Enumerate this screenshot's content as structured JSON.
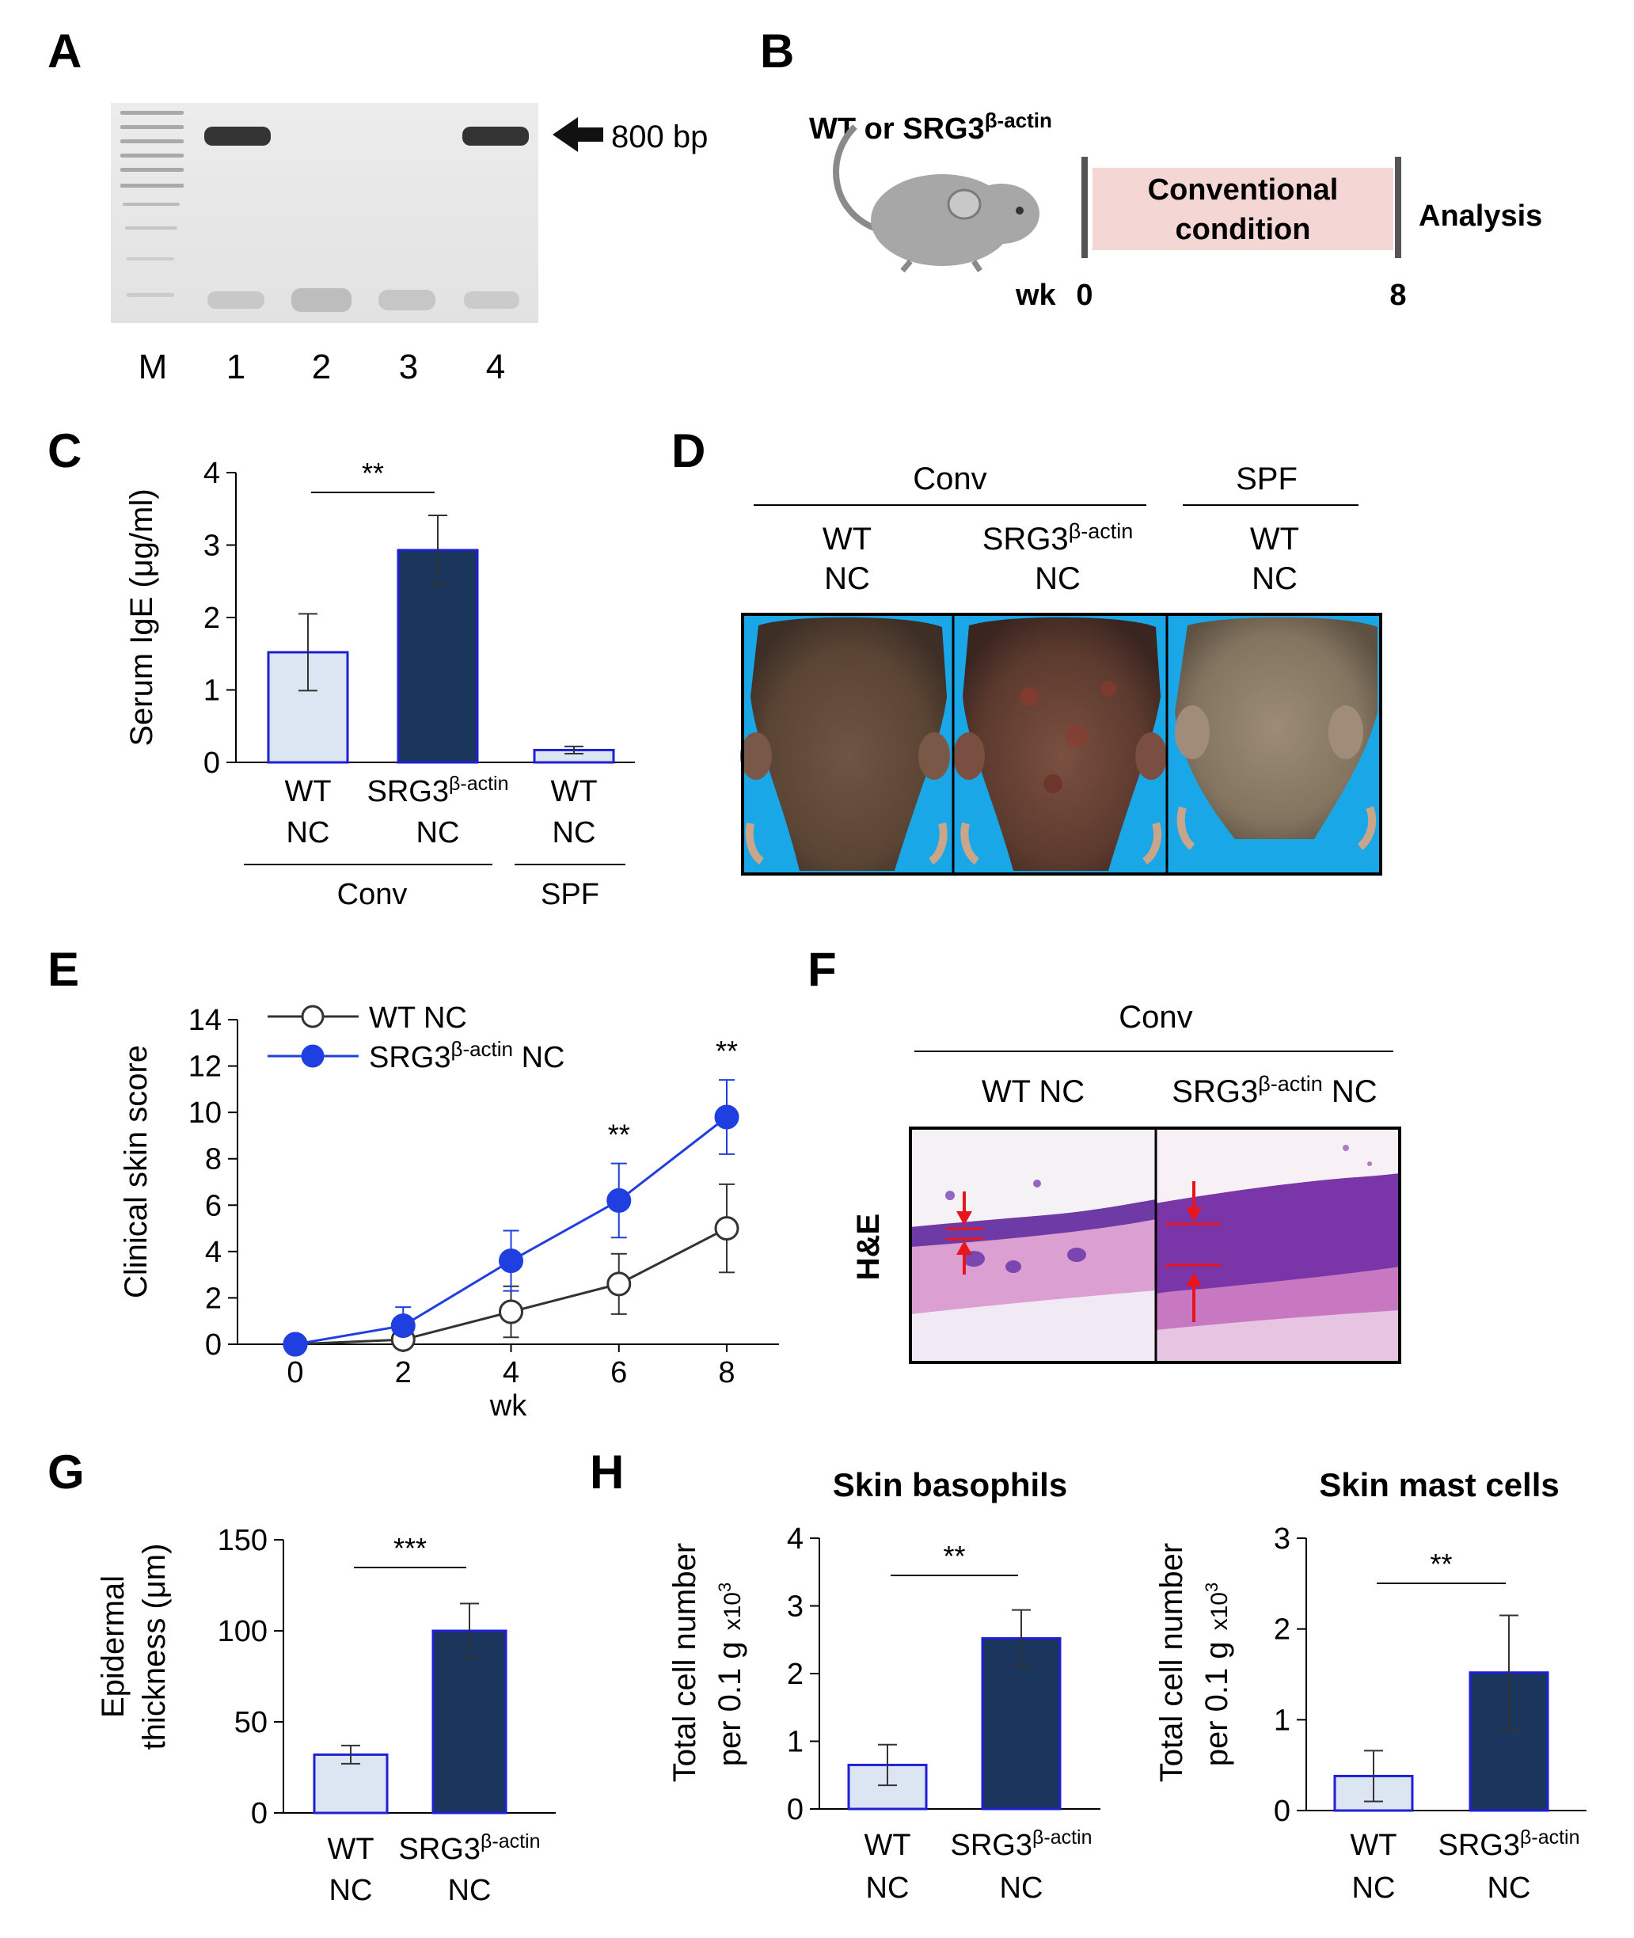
{
  "panels": {
    "A": {
      "label": "A",
      "marker": "800 bp",
      "lanes": [
        "M",
        "1",
        "2",
        "3",
        "4"
      ]
    },
    "B": {
      "label": "B",
      "mouse": "WT or SRG3",
      "mouse_sup": "β-actin",
      "box_line1": "Conventional",
      "box_line2": "condition",
      "analysis": "Analysis",
      "wk": "wk",
      "start": "0",
      "end": "8"
    },
    "C": {
      "label": "C",
      "ylabel": "Serum IgE (μg/ml)",
      "sig": "**",
      "group_conv": "Conv",
      "group_spf": "SPF"
    },
    "D": {
      "label": "D",
      "conv": "Conv",
      "spf": "SPF",
      "col1_top": "WT",
      "col1_bottom": "NC",
      "col2_top": "SRG3",
      "col2_sup": "β-actin",
      "col2_bottom": "NC",
      "col3_top": "WT",
      "col3_bottom": "NC"
    },
    "E": {
      "label": "E",
      "ylabel": "Clinical skin score",
      "xlabel": "wk"
    },
    "F": {
      "label": "F",
      "conv": "Conv",
      "col1": "WT NC",
      "col2_a": "SRG3",
      "col2_sup": "β-actin",
      "col2_b": " NC",
      "stain": "H&E"
    },
    "G": {
      "label": "G",
      "ylabel1": "Epidermal",
      "ylabel2": "thickness (μm)",
      "sig": "***"
    },
    "H": {
      "label": "H",
      "left_title": "Skin basophils",
      "right_title": "Skin mast cells",
      "ylabel1": "Total cell number",
      "ylabel2": "per 0.1 g",
      "multiplier": "x10",
      "multiplier_exp": "3",
      "sig": "**"
    }
  },
  "colors": {
    "wt_fill": "#dce6f2",
    "wt_edge": "#1f1fd6",
    "srg_fill": "#1b365d",
    "srg_line": "#1f3fe0",
    "box_fill": "#f4d7d4",
    "photo_bg": "#19a7e8",
    "he_pink": "#d88fc8",
    "arrow_red": "#e8161a"
  },
  "chart_data": [
    {
      "id": "C",
      "type": "bar",
      "ylabel": "Serum IgE (μg/ml)",
      "ylim": [
        0,
        4
      ],
      "yticks": [
        "0",
        "1",
        "2",
        "3",
        "4"
      ],
      "categories": [
        {
          "top": "WT",
          "sup": "",
          "bottom": "NC",
          "group": "Conv"
        },
        {
          "top": "SRG3",
          "sup": "β-actin",
          "bottom": "NC",
          "group": "Conv"
        },
        {
          "top": "WT",
          "sup": "",
          "bottom": "NC",
          "group": "SPF"
        }
      ],
      "values": [
        1.52,
        2.93,
        0.17
      ],
      "errors": [
        0.53,
        0.48,
        0.05
      ],
      "styles": [
        "wt",
        "srg",
        "wt"
      ],
      "significance": [
        {
          "pair": [
            0,
            1
          ],
          "label": "**"
        }
      ]
    },
    {
      "id": "E",
      "type": "line",
      "ylabel": "Clinical skin score",
      "xlabel": "wk",
      "ylim": [
        0,
        14
      ],
      "yticks": [
        "0",
        "2",
        "4",
        "6",
        "8",
        "10",
        "12",
        "14"
      ],
      "x": [
        0,
        2,
        4,
        6,
        8
      ],
      "xticks": [
        "0",
        "2",
        "4",
        "6",
        "8"
      ],
      "series": [
        {
          "name": "WT NC",
          "name_top": "WT NC",
          "sup": "",
          "style": "open",
          "values": [
            0,
            0.2,
            1.4,
            2.6,
            5.0
          ],
          "errors": [
            0,
            0.3,
            1.1,
            1.3,
            1.9
          ]
        },
        {
          "name": "SRG3 NC",
          "name_top": "SRG3",
          "sup": "β-actin",
          "name_end": " NC",
          "style": "filled",
          "values": [
            0,
            0.8,
            3.6,
            6.2,
            9.8
          ],
          "errors": [
            0,
            0.8,
            1.3,
            1.6,
            1.6
          ]
        }
      ],
      "significance": [
        {
          "x": 6,
          "label": "**"
        },
        {
          "x": 8,
          "label": "**"
        }
      ]
    },
    {
      "id": "G",
      "type": "bar",
      "ylabel": "Epidermal thickness (μm)",
      "ylim": [
        0,
        150
      ],
      "yticks": [
        "0",
        "50",
        "100",
        "150"
      ],
      "categories": [
        {
          "top": "WT",
          "sup": "",
          "bottom": "NC"
        },
        {
          "top": "SRG3",
          "sup": "β-actin",
          "bottom": "NC"
        }
      ],
      "values": [
        32,
        100
      ],
      "errors": [
        5,
        15
      ],
      "styles": [
        "wt",
        "srg"
      ],
      "significance": [
        {
          "pair": [
            0,
            1
          ],
          "label": "***"
        }
      ]
    },
    {
      "id": "H1",
      "type": "bar",
      "title": "Skin basophils",
      "ylabel": "Total cell number per 0.1 g x10^3",
      "ylim": [
        0,
        4
      ],
      "yticks": [
        "0",
        "1",
        "2",
        "3",
        "4"
      ],
      "categories": [
        {
          "top": "WT",
          "sup": "",
          "bottom": "NC"
        },
        {
          "top": "SRG3",
          "sup": "β-actin",
          "bottom": "NC"
        }
      ],
      "values": [
        0.65,
        2.52
      ],
      "errors": [
        0.3,
        0.42
      ],
      "styles": [
        "wt",
        "srg"
      ],
      "significance": [
        {
          "pair": [
            0,
            1
          ],
          "label": "**"
        }
      ]
    },
    {
      "id": "H2",
      "type": "bar",
      "title": "Skin mast cells",
      "ylabel": "Total cell number per 0.1 g x10^3",
      "ylim": [
        0,
        3
      ],
      "yticks": [
        "0",
        "1",
        "2",
        "3"
      ],
      "categories": [
        {
          "top": "WT",
          "sup": "",
          "bottom": "NC"
        },
        {
          "top": "SRG3",
          "sup": "β-actin",
          "bottom": "NC"
        }
      ],
      "values": [
        0.38,
        1.52
      ],
      "errors": [
        0.28,
        0.63
      ],
      "styles": [
        "wt",
        "srg"
      ],
      "significance": [
        {
          "pair": [
            0,
            1
          ],
          "label": "**"
        }
      ]
    }
  ]
}
